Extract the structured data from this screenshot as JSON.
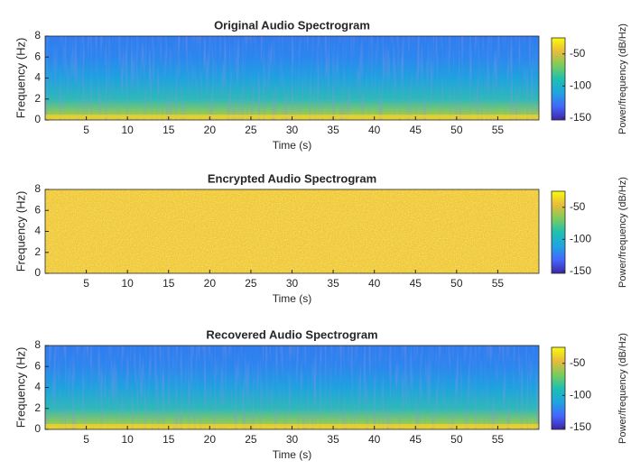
{
  "chart_data": [
    {
      "type": "spectrogram",
      "title": "Original Audio Spectrogram",
      "xlabel": "Time (s)",
      "ylabel": "Frequency (Hz)",
      "xlim": [
        0,
        60
      ],
      "xticks": [
        5,
        10,
        15,
        20,
        25,
        30,
        35,
        40,
        45,
        50,
        55
      ],
      "ylim": [
        0,
        8
      ],
      "yticks": [
        0,
        2,
        4,
        6,
        8
      ],
      "colorbar": {
        "label": "Power/frequency (dB/Hz)",
        "lim": [
          -153,
          -25
        ],
        "ticks": [
          -150,
          -100,
          -50
        ],
        "colors": [
          "#3e26a8",
          "#4367fd",
          "#1fa5e0",
          "#1ec0b0",
          "#7ccc5b",
          "#e8bb3a",
          "#f9fb0e"
        ]
      }
    },
    {
      "type": "spectrogram",
      "title": "Encrypted Audio Spectrogram",
      "xlabel": "Time (s)",
      "ylabel": "Frequency (Hz)",
      "xlim": [
        0,
        60
      ],
      "xticks": [
        5,
        10,
        15,
        20,
        25,
        30,
        35,
        40,
        45,
        50,
        55
      ],
      "ylim": [
        0,
        8
      ],
      "yticks": [
        0,
        2,
        4,
        6,
        8
      ],
      "colorbar": {
        "label": "Power/frequency (dB/Hz)",
        "lim": [
          -153,
          -25
        ],
        "ticks": [
          -150,
          -100,
          -50
        ],
        "colors": [
          "#3e26a8",
          "#4367fd",
          "#1fa5e0",
          "#1ec0b0",
          "#7ccc5b",
          "#e8bb3a",
          "#f9fb0e"
        ]
      }
    },
    {
      "type": "spectrogram",
      "title": "Recovered Audio Spectrogram",
      "xlabel": "Time (s)",
      "ylabel": "Frequency (Hz)",
      "xlim": [
        0,
        60
      ],
      "xticks": [
        5,
        10,
        15,
        20,
        25,
        30,
        35,
        40,
        45,
        50,
        55
      ],
      "ylim": [
        0,
        8
      ],
      "yticks": [
        0,
        2,
        4,
        6,
        8
      ],
      "colorbar": {
        "label": "Power/frequency (dB/Hz)",
        "lim": [
          -153,
          -25
        ],
        "ticks": [
          -150,
          -100,
          -50
        ],
        "colors": [
          "#3e26a8",
          "#4367fd",
          "#1fa5e0",
          "#1ec0b0",
          "#7ccc5b",
          "#e8bb3a",
          "#f9fb0e"
        ]
      }
    }
  ]
}
